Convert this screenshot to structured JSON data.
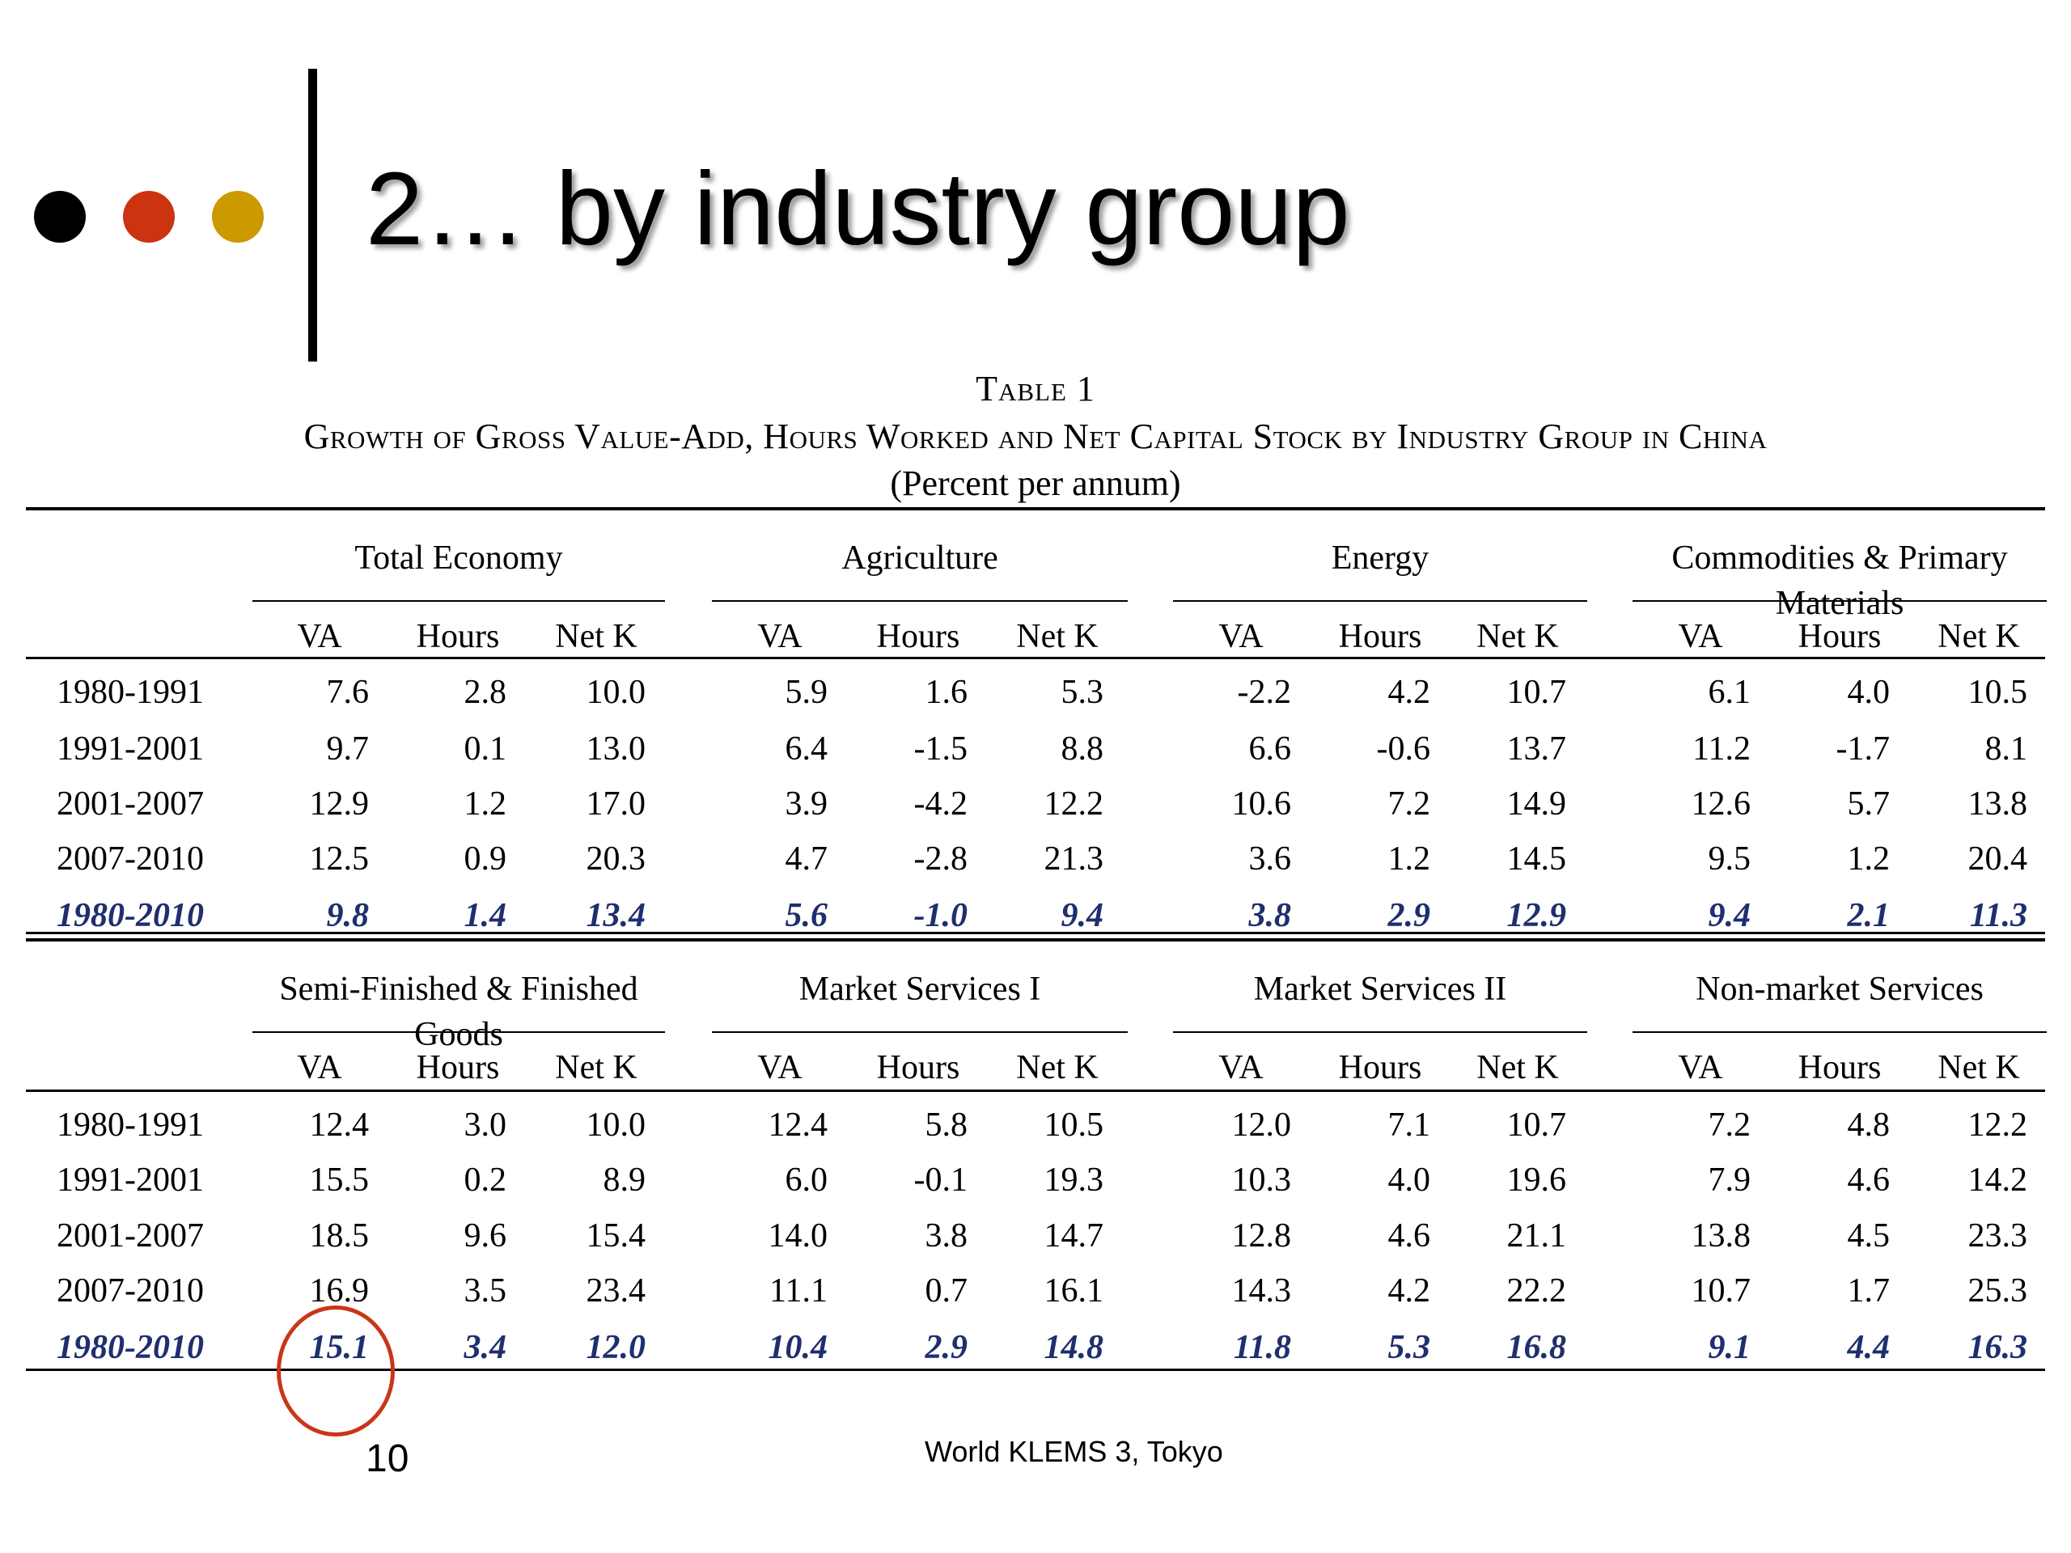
{
  "slide": {
    "title": "2… by industry group",
    "page_number": "10",
    "footer": "World KLEMS 3, Tokyo",
    "dots": [
      {
        "name": "black",
        "color": "#000000"
      },
      {
        "name": "red",
        "color": "#cc3311"
      },
      {
        "name": "gold",
        "color": "#cc9900"
      }
    ],
    "highlight_color": "#c8361a"
  },
  "table": {
    "label": "Table 1",
    "title": "Growth of Gross Value-Add, Hours Worked and Net Capital Stock by Industry Group in China",
    "unit": "(Percent per annum)",
    "columns": [
      "VA",
      "Hours",
      "Net K"
    ],
    "periods": [
      "1980-1991",
      "1991-2001",
      "2001-2007",
      "2007-2010",
      "1980-2010"
    ],
    "blocks": [
      {
        "groups": [
          {
            "name": "Total Economy",
            "rows": [
              [
                "7.6",
                "2.8",
                "10.0"
              ],
              [
                "9.7",
                "0.1",
                "13.0"
              ],
              [
                "12.9",
                "1.2",
                "17.0"
              ],
              [
                "12.5",
                "0.9",
                "20.3"
              ],
              [
                "9.8",
                "1.4",
                "13.4"
              ]
            ]
          },
          {
            "name": "Agriculture",
            "rows": [
              [
                "5.9",
                "1.6",
                "5.3"
              ],
              [
                "6.4",
                "-1.5",
                "8.8"
              ],
              [
                "3.9",
                "-4.2",
                "12.2"
              ],
              [
                "4.7",
                "-2.8",
                "21.3"
              ],
              [
                "5.6",
                "-1.0",
                "9.4"
              ]
            ]
          },
          {
            "name": "Energy",
            "rows": [
              [
                "-2.2",
                "4.2",
                "10.7"
              ],
              [
                "6.6",
                "-0.6",
                "13.7"
              ],
              [
                "10.6",
                "7.2",
                "14.9"
              ],
              [
                "3.6",
                "1.2",
                "14.5"
              ],
              [
                "3.8",
                "2.9",
                "12.9"
              ]
            ]
          },
          {
            "name": "Commodities & Primary Materials",
            "rows": [
              [
                "6.1",
                "4.0",
                "10.5"
              ],
              [
                "11.2",
                "-1.7",
                "8.1"
              ],
              [
                "12.6",
                "5.7",
                "13.8"
              ],
              [
                "9.5",
                "1.2",
                "20.4"
              ],
              [
                "9.4",
                "2.1",
                "11.3"
              ]
            ]
          }
        ]
      },
      {
        "groups": [
          {
            "name": "Semi-Finished & Finished Goods",
            "rows": [
              [
                "12.4",
                "3.0",
                "10.0"
              ],
              [
                "15.5",
                "0.2",
                "8.9"
              ],
              [
                "18.5",
                "9.6",
                "15.4"
              ],
              [
                "16.9",
                "3.5",
                "23.4"
              ],
              [
                "15.1",
                "3.4",
                "12.0"
              ]
            ]
          },
          {
            "name": "Market Services I",
            "rows": [
              [
                "12.4",
                "5.8",
                "10.5"
              ],
              [
                "6.0",
                "-0.1",
                "19.3"
              ],
              [
                "14.0",
                "3.8",
                "14.7"
              ],
              [
                "11.1",
                "0.7",
                "16.1"
              ],
              [
                "10.4",
                "2.9",
                "14.8"
              ]
            ]
          },
          {
            "name": "Market Services II",
            "rows": [
              [
                "12.0",
                "7.1",
                "10.7"
              ],
              [
                "10.3",
                "4.0",
                "19.6"
              ],
              [
                "12.8",
                "4.6",
                "21.1"
              ],
              [
                "14.3",
                "4.2",
                "22.2"
              ],
              [
                "11.8",
                "5.3",
                "16.8"
              ]
            ]
          },
          {
            "name": "Non-market Services",
            "rows": [
              [
                "7.2",
                "4.8",
                "12.2"
              ],
              [
                "7.9",
                "4.6",
                "14.2"
              ],
              [
                "13.8",
                "4.5",
                "23.3"
              ],
              [
                "10.7",
                "1.7",
                "25.3"
              ],
              [
                "9.1",
                "4.4",
                "16.3"
              ]
            ]
          }
        ]
      }
    ]
  }
}
